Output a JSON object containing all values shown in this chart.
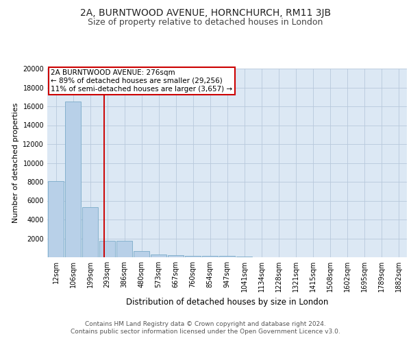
{
  "title": "2A, BURNTWOOD AVENUE, HORNCHURCH, RM11 3JB",
  "subtitle": "Size of property relative to detached houses in London",
  "xlabel": "Distribution of detached houses by size in London",
  "ylabel": "Number of detached properties",
  "categories": [
    "12sqm",
    "106sqm",
    "199sqm",
    "293sqm",
    "386sqm",
    "480sqm",
    "573sqm",
    "667sqm",
    "760sqm",
    "854sqm",
    "947sqm",
    "1041sqm",
    "1134sqm",
    "1228sqm",
    "1321sqm",
    "1415sqm",
    "1508sqm",
    "1602sqm",
    "1695sqm",
    "1789sqm",
    "1882sqm"
  ],
  "values": [
    8100,
    16500,
    5300,
    1750,
    1750,
    680,
    310,
    210,
    165,
    140,
    115,
    90,
    0,
    0,
    0,
    0,
    0,
    0,
    0,
    0,
    0
  ],
  "bar_color": "#b8d0e8",
  "bar_edge_color": "#7aaac8",
  "vline_x": 2.82,
  "vline_color": "#cc0000",
  "annotation_text": "2A BURNTWOOD AVENUE: 276sqm\n← 89% of detached houses are smaller (29,256)\n11% of semi-detached houses are larger (3,657) →",
  "annotation_box_color": "#ffffff",
  "annotation_border_color": "#cc0000",
  "footer": "Contains HM Land Registry data © Crown copyright and database right 2024.\nContains public sector information licensed under the Open Government Licence v3.0.",
  "bg_color": "#dce8f4",
  "ylim": [
    0,
    20000
  ],
  "yticks": [
    0,
    2000,
    4000,
    6000,
    8000,
    10000,
    12000,
    14000,
    16000,
    18000,
    20000
  ],
  "title_fontsize": 10,
  "subtitle_fontsize": 9,
  "annot_fontsize": 7.5,
  "ylabel_fontsize": 8,
  "xlabel_fontsize": 8.5,
  "tick_fontsize": 7,
  "footer_fontsize": 6.5
}
